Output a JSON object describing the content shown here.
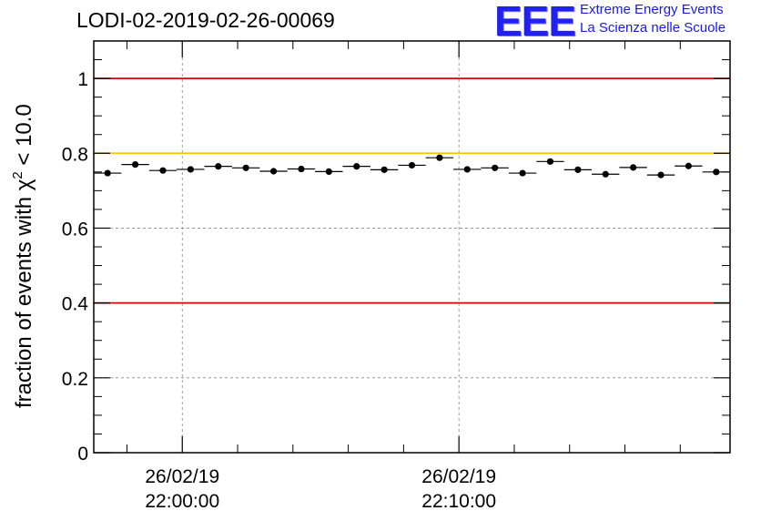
{
  "header": {
    "title": "LODI-02-2019-02-26-00069",
    "logo_text": "EEE",
    "logo_line1": "Extreme Energy Events",
    "logo_line2": "La Scienza nelle Scuole"
  },
  "colors": {
    "limit_red": "#dd0000",
    "limit_orange": "#ffc000",
    "marker": "#000000",
    "grid": "#888888",
    "logo_blue": "#1a1ae6"
  },
  "chart_data": {
    "type": "scatter",
    "title": "LODI-02-2019-02-26-00069",
    "xlabel": "",
    "ylabel_prefix": "fraction of events with ",
    "ylabel_chi": "χ",
    "ylabel_exp": "2",
    "ylabel_suffix": " < 10.0",
    "ylim": [
      0,
      1.1
    ],
    "yticks": [
      0,
      0.2,
      0.4,
      0.6,
      0.8,
      1
    ],
    "ytick_labels": [
      "0",
      "0.2",
      "0.4",
      "0.6",
      "0.8",
      "1"
    ],
    "xlim_minutes": [
      -3.2,
      19.8
    ],
    "xticks": [
      {
        "minute": 0,
        "date": "26/02/19",
        "time": "22:00:00"
      },
      {
        "minute": 10,
        "date": "26/02/19",
        "time": "22:10:00"
      }
    ],
    "bin_width_minutes": 1,
    "series": [
      {
        "name": "fraction",
        "x_minutes": [
          -2.7,
          -1.7,
          -0.7,
          0.3,
          1.3,
          2.3,
          3.3,
          4.3,
          5.3,
          6.3,
          7.3,
          8.3,
          9.3,
          10.3,
          11.3,
          12.3,
          13.3,
          14.3,
          15.3,
          16.3,
          17.3,
          18.3,
          19.3
        ],
        "values": [
          0.747,
          0.77,
          0.754,
          0.757,
          0.765,
          0.761,
          0.752,
          0.758,
          0.751,
          0.765,
          0.756,
          0.768,
          0.788,
          0.757,
          0.761,
          0.747,
          0.778,
          0.756,
          0.744,
          0.762,
          0.742,
          0.766,
          0.75
        ]
      }
    ],
    "reference_lines": [
      {
        "value": 1.0,
        "color": "#dd0000"
      },
      {
        "value": 0.8,
        "color": "#ffc000"
      },
      {
        "value": 0.4,
        "color": "#dd0000"
      }
    ]
  }
}
